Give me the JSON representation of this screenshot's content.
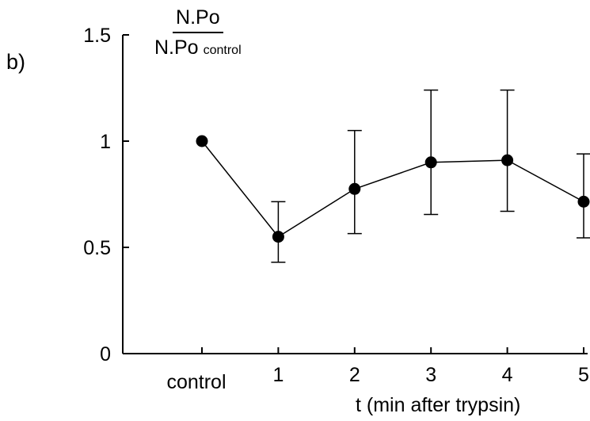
{
  "panel_label": "b)",
  "chart_data": {
    "type": "line",
    "categories": [
      "control",
      "1",
      "2",
      "3",
      "4",
      "5"
    ],
    "values": [
      1.0,
      0.55,
      0.775,
      0.9,
      0.91,
      0.715
    ],
    "error_upper": [
      null,
      0.715,
      1.05,
      1.24,
      1.24,
      0.94
    ],
    "error_lower": [
      null,
      0.43,
      0.565,
      0.655,
      0.67,
      0.545
    ],
    "ylabel": {
      "numerator": "N.Po",
      "denominator": "N.Po",
      "subscript": "control"
    },
    "xlabel": "t (min after trypsin)",
    "ylim": [
      0,
      1.5
    ],
    "yticks": [
      "0",
      "0.5",
      "1",
      "1.5"
    ],
    "grid": false,
    "marker": "filled-circle",
    "color": "#000000"
  }
}
